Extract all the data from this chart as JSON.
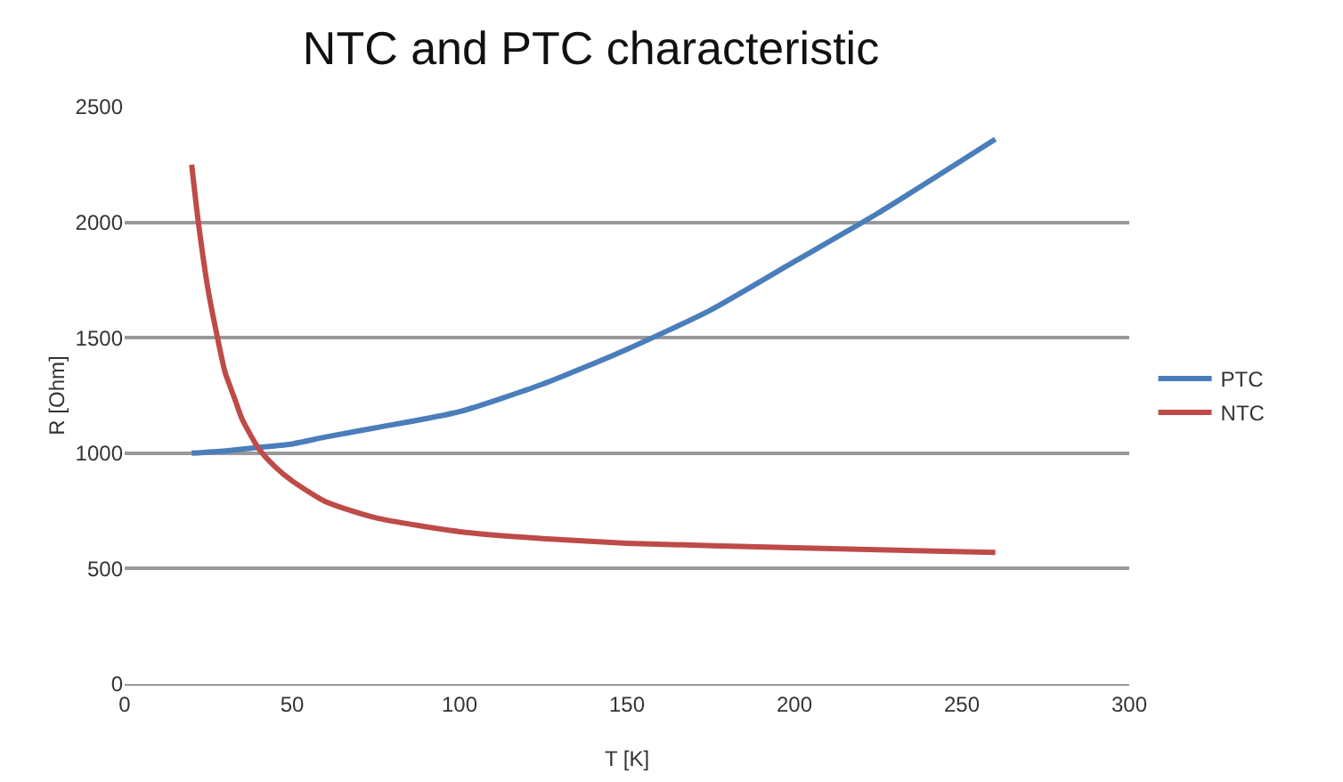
{
  "chart_data": {
    "type": "line",
    "title": "NTC and PTC characteristic",
    "xlabel": "T [K]",
    "ylabel": "R [Ohm]",
    "xlim": [
      0,
      300
    ],
    "xticks": [
      0,
      50,
      100,
      150,
      200,
      250,
      300
    ],
    "ylim": [
      0,
      2500
    ],
    "yticks": [
      0,
      500,
      1000,
      1500,
      2000,
      2500
    ],
    "grid": "y",
    "legend": "right",
    "marker": "none",
    "line_style": "solid",
    "series": [
      {
        "name": "PTC",
        "color": "#4a7ebb",
        "x": [
          20,
          30,
          40,
          50,
          60,
          75,
          100,
          125,
          150,
          175,
          200,
          225,
          260
        ],
        "values": [
          1000,
          1010,
          1025,
          1040,
          1070,
          1110,
          1180,
          1300,
          1450,
          1620,
          1830,
          2040,
          2360
        ]
      },
      {
        "name": "NTC",
        "color": "#be4b48",
        "x": [
          20,
          22,
          25,
          28,
          30,
          33,
          35,
          40,
          45,
          50,
          60,
          75,
          100,
          125,
          150,
          200,
          260
        ],
        "values": [
          2250,
          2000,
          1700,
          1480,
          1350,
          1230,
          1150,
          1020,
          940,
          880,
          790,
          720,
          660,
          630,
          610,
          590,
          570
        ]
      }
    ]
  }
}
